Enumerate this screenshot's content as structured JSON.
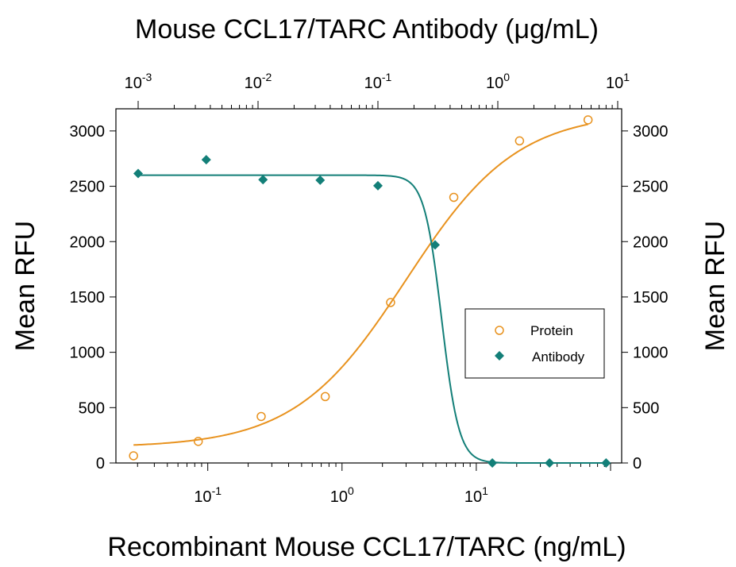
{
  "chart_data": {
    "type": "scatter",
    "title": "Mouse CCL17/TARC Antibody (μg/mL)",
    "xlabel": "Recombinant Mouse CCL17/TARC (ng/mL)",
    "ylabel_left": "Mean RFU",
    "ylabel_right": "Mean RFU",
    "x_scale": "log",
    "xlim": [
      0.0207,
      121
    ],
    "ylim": [
      0,
      3200
    ],
    "y_ticks": [
      0,
      500,
      1000,
      1500,
      2000,
      2500,
      3000
    ],
    "bottom_ticks": [
      {
        "value": 0.1,
        "base": "10",
        "exp": "-1"
      },
      {
        "value": 1,
        "base": "10",
        "exp": "0"
      },
      {
        "value": 10,
        "base": "10",
        "exp": "1"
      }
    ],
    "top_axis": {
      "label": "Mouse CCL17/TARC Antibody (μg/mL)",
      "scale": "log",
      "ticks": [
        {
          "value": 0.001,
          "base": "10",
          "exp": "-3"
        },
        {
          "value": 0.01,
          "base": "10",
          "exp": "-2"
        },
        {
          "value": 0.1,
          "base": "10",
          "exp": "-1"
        },
        {
          "value": 1,
          "base": "10",
          "exp": "0"
        },
        {
          "value": 10,
          "base": "10",
          "exp": "1"
        }
      ]
    },
    "legend": {
      "position": "center-right",
      "entries": [
        "Protein",
        "Antibody"
      ]
    },
    "series": [
      {
        "name": "Protein",
        "axis": "bottom",
        "marker": "open-circle",
        "color": "#E8921E",
        "points": [
          {
            "x": 0.028,
            "y": 65
          },
          {
            "x": 0.085,
            "y": 195
          },
          {
            "x": 0.25,
            "y": 420
          },
          {
            "x": 0.75,
            "y": 600
          },
          {
            "x": 2.3,
            "y": 1450
          },
          {
            "x": 6.8,
            "y": 2400
          },
          {
            "x": 21,
            "y": 2910
          },
          {
            "x": 68,
            "y": 3100
          }
        ],
        "fit": {
          "bottom": 140,
          "top": 3170,
          "ec50": 3.0,
          "hill": 1.05
        }
      },
      {
        "name": "Antibody",
        "axis": "top",
        "marker": "filled-diamond",
        "color": "#137F78",
        "points": [
          {
            "x": 0.001,
            "y": 2615
          },
          {
            "x": 0.0037,
            "y": 2740
          },
          {
            "x": 0.011,
            "y": 2560
          },
          {
            "x": 0.033,
            "y": 2555
          },
          {
            "x": 0.1,
            "y": 2505
          },
          {
            "x": 0.3,
            "y": 1970
          },
          {
            "x": 0.9,
            "y": 0
          },
          {
            "x": 2.7,
            "y": 0
          },
          {
            "x": 8,
            "y": 0
          }
        ],
        "fit": {
          "bottom": 0,
          "top": 2600,
          "ec50": 0.34,
          "hill": 6
        }
      }
    ]
  }
}
